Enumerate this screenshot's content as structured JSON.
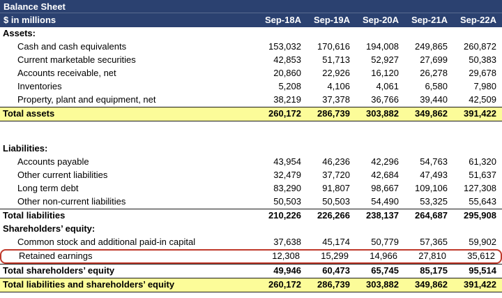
{
  "header": {
    "title": "Balance Sheet",
    "subtitle": "$ in millions",
    "columns": [
      "Sep-18A",
      "Sep-19A",
      "Sep-20A",
      "Sep-21A",
      "Sep-22A"
    ]
  },
  "colors": {
    "header_bg": "#2B4170",
    "header_text": "#FFFFFF",
    "total_highlight": "#FCFC99",
    "annotation_red": "#C0392B",
    "border_dark": "#1A1A1A"
  },
  "table": {
    "rows": [
      {
        "label": "Assets:",
        "type": "section",
        "values": []
      },
      {
        "label": "Cash and cash equivalents",
        "type": "item",
        "values": [
          "153,032",
          "170,616",
          "194,008",
          "249,865",
          "260,872"
        ]
      },
      {
        "label": "Current marketable securities",
        "type": "item",
        "values": [
          "42,853",
          "51,713",
          "52,927",
          "27,699",
          "50,383"
        ]
      },
      {
        "label": "Accounts receivable, net",
        "type": "item",
        "values": [
          "20,860",
          "22,926",
          "16,120",
          "26,278",
          "29,678"
        ]
      },
      {
        "label": "Inventories",
        "type": "item",
        "values": [
          "5,208",
          "4,106",
          "4,061",
          "6,580",
          "7,980"
        ]
      },
      {
        "label": "Property, plant and equipment, net",
        "type": "item",
        "values": [
          "38,219",
          "37,378",
          "36,766",
          "39,440",
          "42,509"
        ]
      },
      {
        "label": "Total assets",
        "type": "grand",
        "values": [
          "260,172",
          "286,739",
          "303,882",
          "349,862",
          "391,422"
        ]
      },
      {
        "label": "",
        "type": "spacer",
        "values": []
      },
      {
        "label": "Liabilities:",
        "type": "section",
        "values": []
      },
      {
        "label": "Accounts payable",
        "type": "item",
        "values": [
          "43,954",
          "46,236",
          "42,296",
          "54,763",
          "61,320"
        ]
      },
      {
        "label": "Other current liabilities",
        "type": "item",
        "values": [
          "32,479",
          "37,720",
          "42,684",
          "47,493",
          "51,637"
        ]
      },
      {
        "label": "Long term debt",
        "type": "item",
        "values": [
          "83,290",
          "91,807",
          "98,667",
          "109,106",
          "127,308"
        ]
      },
      {
        "label": "Other non-current liabilities",
        "type": "item",
        "values": [
          "50,503",
          "50,503",
          "54,490",
          "53,325",
          "55,643"
        ]
      },
      {
        "label": "Total liabilities",
        "type": "total",
        "values": [
          "210,226",
          "226,266",
          "238,137",
          "264,687",
          "295,908"
        ]
      },
      {
        "label": "Shareholders’ equity:",
        "type": "section",
        "values": []
      },
      {
        "label": "Common stock and additional paid-in capital",
        "type": "item",
        "values": [
          "37,638",
          "45,174",
          "50,779",
          "57,365",
          "59,902"
        ]
      },
      {
        "label": "Retained earnings",
        "type": "annotated",
        "values": [
          "12,308",
          "15,299",
          "14,966",
          "27,810",
          "35,612"
        ]
      },
      {
        "label": "Total shareholders’ equity",
        "type": "total",
        "values": [
          "49,946",
          "60,473",
          "65,745",
          "85,175",
          "95,514"
        ]
      },
      {
        "label": "Total liabilities and shareholders’ equity",
        "type": "grand",
        "values": [
          "260,172",
          "286,739",
          "303,882",
          "349,862",
          "391,422"
        ]
      }
    ]
  }
}
